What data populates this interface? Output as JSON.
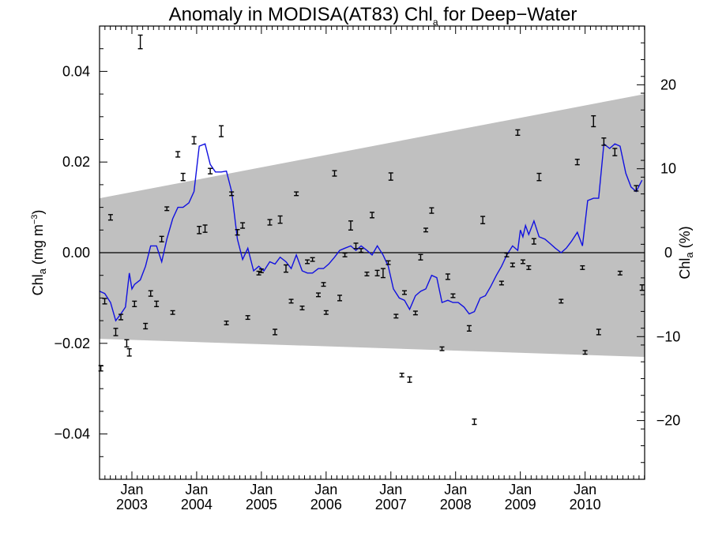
{
  "chart_data": {
    "type": "scatter",
    "title": "Anomaly in MODISA(AT83) Chl",
    "title_subscript": "a",
    "title_suffix": " for Deep−Water",
    "ylabel": "Chl",
    "ylabel_subscript": "a",
    "ylabel_units": " (mg m",
    "ylabel_units_sup": "−3",
    "ylabel_units_close": ")",
    "y2label": "Chl",
    "y2label_subscript": "a",
    "y2label_units": " (%)",
    "xlim": [
      2002.5,
      2010.92
    ],
    "ylim": [
      -0.05,
      0.05
    ],
    "y2lim": [
      -27,
      27
    ],
    "y_ticks": [
      -0.04,
      -0.02,
      0.0,
      0.02,
      0.04
    ],
    "y_tick_labels": [
      "−0.04",
      "−0.02",
      "0.00",
      "0.02",
      "0.04"
    ],
    "y2_ticks": [
      -20,
      -10,
      0,
      10,
      20
    ],
    "y2_tick_labels": [
      "−20",
      "−10",
      "0",
      "10",
      "20"
    ],
    "x_ticks": [
      {
        "x": 2003.0,
        "month": "Jan",
        "year": "2003"
      },
      {
        "x": 2004.0,
        "month": "Jan",
        "year": "2004"
      },
      {
        "x": 2005.0,
        "month": "Jan",
        "year": "2005"
      },
      {
        "x": 2006.0,
        "month": "Jan",
        "year": "2006"
      },
      {
        "x": 2007.0,
        "month": "Jan",
        "year": "2007"
      },
      {
        "x": 2008.0,
        "month": "Jan",
        "year": "2008"
      },
      {
        "x": 2009.0,
        "month": "Jan",
        "year": "2009"
      },
      {
        "x": 2010.0,
        "month": "Jan",
        "year": "2010"
      }
    ],
    "zero_line": 0.0,
    "band": {
      "color": "#c0c0c0",
      "x": [
        2002.5,
        2010.92
      ],
      "upper": [
        0.012,
        0.035
      ],
      "lower": [
        -0.019,
        -0.023
      ]
    },
    "line_color": "#1010e0",
    "points_color": "#000000",
    "points": [
      [
        2002.52,
        -0.0255,
        0.0006
      ],
      [
        2002.58,
        -0.0107,
        0.0006
      ],
      [
        2002.67,
        0.0078,
        0.0006
      ],
      [
        2002.75,
        -0.0175,
        0.0008
      ],
      [
        2002.83,
        -0.0142,
        0.0006
      ],
      [
        2002.92,
        -0.02,
        0.0008
      ],
      [
        2002.96,
        -0.022,
        0.0008
      ],
      [
        2003.04,
        -0.0113,
        0.0006
      ],
      [
        2003.13,
        0.0465,
        0.0015
      ],
      [
        2003.21,
        -0.0162,
        0.0006
      ],
      [
        2003.29,
        -0.009,
        0.0006
      ],
      [
        2003.38,
        -0.0113,
        0.0006
      ],
      [
        2003.46,
        0.003,
        0.0006
      ],
      [
        2003.54,
        0.0097,
        0.0004
      ],
      [
        2003.63,
        -0.0132,
        0.0004
      ],
      [
        2003.71,
        0.0217,
        0.0006
      ],
      [
        2003.79,
        0.0167,
        0.0008
      ],
      [
        2003.96,
        0.0248,
        0.0008
      ],
      [
        2004.04,
        0.005,
        0.0008
      ],
      [
        2004.13,
        0.0053,
        0.0008
      ],
      [
        2004.21,
        0.018,
        0.0006
      ],
      [
        2004.38,
        0.0268,
        0.0012
      ],
      [
        2004.46,
        -0.0155,
        0.0004
      ],
      [
        2004.54,
        0.013,
        0.0004
      ],
      [
        2004.63,
        0.0045,
        0.0006
      ],
      [
        2004.71,
        0.006,
        0.0006
      ],
      [
        2004.79,
        -0.0143,
        0.0004
      ],
      [
        2004.96,
        -0.0045,
        0.0004
      ],
      [
        2005.0,
        -0.004,
        0.0004
      ],
      [
        2005.13,
        0.0067,
        0.0006
      ],
      [
        2005.21,
        -0.0175,
        0.0006
      ],
      [
        2005.29,
        0.0073,
        0.0008
      ],
      [
        2005.38,
        -0.0035,
        0.0008
      ],
      [
        2005.46,
        -0.0107,
        0.0004
      ],
      [
        2005.54,
        0.013,
        0.0004
      ],
      [
        2005.63,
        -0.0122,
        0.0004
      ],
      [
        2005.71,
        -0.002,
        0.0004
      ],
      [
        2005.79,
        -0.0015,
        0.0004
      ],
      [
        2005.88,
        -0.0093,
        0.0004
      ],
      [
        2005.96,
        -0.007,
        0.0004
      ],
      [
        2006.0,
        -0.0132,
        0.0004
      ],
      [
        2006.13,
        0.0175,
        0.0006
      ],
      [
        2006.21,
        -0.01,
        0.0006
      ],
      [
        2006.29,
        -0.0005,
        0.0004
      ],
      [
        2006.38,
        0.006,
        0.001
      ],
      [
        2006.46,
        0.0015,
        0.0006
      ],
      [
        2006.54,
        0.0005,
        0.0004
      ],
      [
        2006.63,
        -0.0047,
        0.0004
      ],
      [
        2006.71,
        0.0083,
        0.0006
      ],
      [
        2006.79,
        -0.0045,
        0.0006
      ],
      [
        2006.88,
        -0.0045,
        0.001
      ],
      [
        2006.96,
        -0.0022,
        0.0004
      ],
      [
        2007.0,
        0.0168,
        0.0008
      ],
      [
        2007.08,
        -0.014,
        0.0004
      ],
      [
        2007.17,
        -0.027,
        0.0004
      ],
      [
        2007.21,
        -0.0088,
        0.0004
      ],
      [
        2007.29,
        -0.028,
        0.0006
      ],
      [
        2007.38,
        -0.0133,
        0.0004
      ],
      [
        2007.46,
        -0.001,
        0.0006
      ],
      [
        2007.54,
        0.005,
        0.0004
      ],
      [
        2007.63,
        0.0093,
        0.0006
      ],
      [
        2007.79,
        -0.0212,
        0.0004
      ],
      [
        2007.88,
        -0.0053,
        0.0006
      ],
      [
        2007.96,
        -0.0095,
        0.0004
      ],
      [
        2008.21,
        -0.0167,
        0.0006
      ],
      [
        2008.29,
        -0.0373,
        0.0006
      ],
      [
        2008.42,
        0.0072,
        0.0008
      ],
      [
        2008.71,
        -0.0067,
        0.0004
      ],
      [
        2008.79,
        -0.0005,
        0.0004
      ],
      [
        2008.88,
        -0.0027,
        0.0004
      ],
      [
        2008.96,
        0.0265,
        0.0006
      ],
      [
        2009.04,
        -0.002,
        0.0004
      ],
      [
        2009.13,
        -0.0033,
        0.0004
      ],
      [
        2009.21,
        0.0025,
        0.0006
      ],
      [
        2009.29,
        0.0167,
        0.0008
      ],
      [
        2009.63,
        -0.0107,
        0.0004
      ],
      [
        2009.88,
        0.02,
        0.0006
      ],
      [
        2009.96,
        -0.0033,
        0.0004
      ],
      [
        2010.0,
        -0.022,
        0.0004
      ],
      [
        2010.13,
        0.029,
        0.0012
      ],
      [
        2010.21,
        -0.0175,
        0.0006
      ],
      [
        2010.29,
        0.0245,
        0.0008
      ],
      [
        2010.46,
        0.0222,
        0.0008
      ],
      [
        2010.54,
        -0.0045,
        0.0004
      ],
      [
        2010.79,
        0.0142,
        0.0006
      ],
      [
        2010.88,
        -0.0077,
        0.0006
      ]
    ],
    "line": [
      [
        2002.5,
        -0.0085
      ],
      [
        2002.58,
        -0.009
      ],
      [
        2002.67,
        -0.011
      ],
      [
        2002.75,
        -0.015
      ],
      [
        2002.83,
        -0.0135
      ],
      [
        2002.9,
        -0.012
      ],
      [
        2002.96,
        -0.0045
      ],
      [
        2003.0,
        -0.008
      ],
      [
        2003.04,
        -0.007
      ],
      [
        2003.13,
        -0.006
      ],
      [
        2003.21,
        -0.003
      ],
      [
        2003.29,
        0.0015
      ],
      [
        2003.38,
        0.0015
      ],
      [
        2003.46,
        -0.002
      ],
      [
        2003.54,
        0.003
      ],
      [
        2003.63,
        0.0075
      ],
      [
        2003.71,
        0.01
      ],
      [
        2003.79,
        0.01
      ],
      [
        2003.88,
        0.011
      ],
      [
        2003.96,
        0.0135
      ],
      [
        2004.04,
        0.0235
      ],
      [
        2004.13,
        0.024
      ],
      [
        2004.21,
        0.0195
      ],
      [
        2004.29,
        0.0178
      ],
      [
        2004.38,
        0.0178
      ],
      [
        2004.46,
        0.018
      ],
      [
        2004.54,
        0.0135
      ],
      [
        2004.63,
        0.003
      ],
      [
        2004.71,
        -0.0015
      ],
      [
        2004.79,
        0.001
      ],
      [
        2004.88,
        -0.004
      ],
      [
        2004.96,
        -0.003
      ],
      [
        2005.04,
        -0.004
      ],
      [
        2005.13,
        -0.002
      ],
      [
        2005.21,
        -0.0025
      ],
      [
        2005.29,
        -0.001
      ],
      [
        2005.38,
        -0.002
      ],
      [
        2005.46,
        -0.0035
      ],
      [
        2005.54,
        -0.0005
      ],
      [
        2005.63,
        -0.004
      ],
      [
        2005.71,
        -0.0045
      ],
      [
        2005.79,
        -0.0045
      ],
      [
        2005.88,
        -0.0035
      ],
      [
        2005.96,
        -0.0035
      ],
      [
        2006.04,
        -0.0025
      ],
      [
        2006.13,
        -0.001
      ],
      [
        2006.21,
        0.0005
      ],
      [
        2006.29,
        0.001
      ],
      [
        2006.38,
        0.0015
      ],
      [
        2006.46,
        0.0005
      ],
      [
        2006.54,
        0.0015
      ],
      [
        2006.63,
        0.0005
      ],
      [
        2006.71,
        -0.0005
      ],
      [
        2006.79,
        0.0015
      ],
      [
        2006.88,
        -0.0005
      ],
      [
        2006.96,
        -0.003
      ],
      [
        2007.04,
        -0.008
      ],
      [
        2007.13,
        -0.01
      ],
      [
        2007.21,
        -0.0105
      ],
      [
        2007.29,
        -0.0125
      ],
      [
        2007.38,
        -0.0095
      ],
      [
        2007.46,
        -0.0085
      ],
      [
        2007.54,
        -0.008
      ],
      [
        2007.63,
        -0.005
      ],
      [
        2007.71,
        -0.0055
      ],
      [
        2007.79,
        -0.011
      ],
      [
        2007.88,
        -0.0105
      ],
      [
        2007.96,
        -0.011
      ],
      [
        2008.04,
        -0.011
      ],
      [
        2008.13,
        -0.012
      ],
      [
        2008.21,
        -0.0135
      ],
      [
        2008.29,
        -0.013
      ],
      [
        2008.38,
        -0.01
      ],
      [
        2008.46,
        -0.0095
      ],
      [
        2008.54,
        -0.0075
      ],
      [
        2008.63,
        -0.005
      ],
      [
        2008.71,
        -0.003
      ],
      [
        2008.79,
        -0.0005
      ],
      [
        2008.88,
        0.0015
      ],
      [
        2008.96,
        0.0005
      ],
      [
        2009.0,
        0.005
      ],
      [
        2009.04,
        0.0035
      ],
      [
        2009.08,
        0.006
      ],
      [
        2009.13,
        0.004
      ],
      [
        2009.21,
        0.007
      ],
      [
        2009.29,
        0.0035
      ],
      [
        2009.38,
        0.003
      ],
      [
        2009.46,
        0.002
      ],
      [
        2009.54,
        0.001
      ],
      [
        2009.63,
        0.0
      ],
      [
        2009.71,
        0.001
      ],
      [
        2009.79,
        0.0025
      ],
      [
        2009.88,
        0.0045
      ],
      [
        2009.96,
        0.0015
      ],
      [
        2010.04,
        0.0115
      ],
      [
        2010.13,
        0.012
      ],
      [
        2010.21,
        0.012
      ],
      [
        2010.29,
        0.024
      ],
      [
        2010.38,
        0.023
      ],
      [
        2010.46,
        0.024
      ],
      [
        2010.54,
        0.0235
      ],
      [
        2010.63,
        0.0175
      ],
      [
        2010.71,
        0.0145
      ],
      [
        2010.79,
        0.0135
      ],
      [
        2010.88,
        0.016
      ]
    ]
  }
}
